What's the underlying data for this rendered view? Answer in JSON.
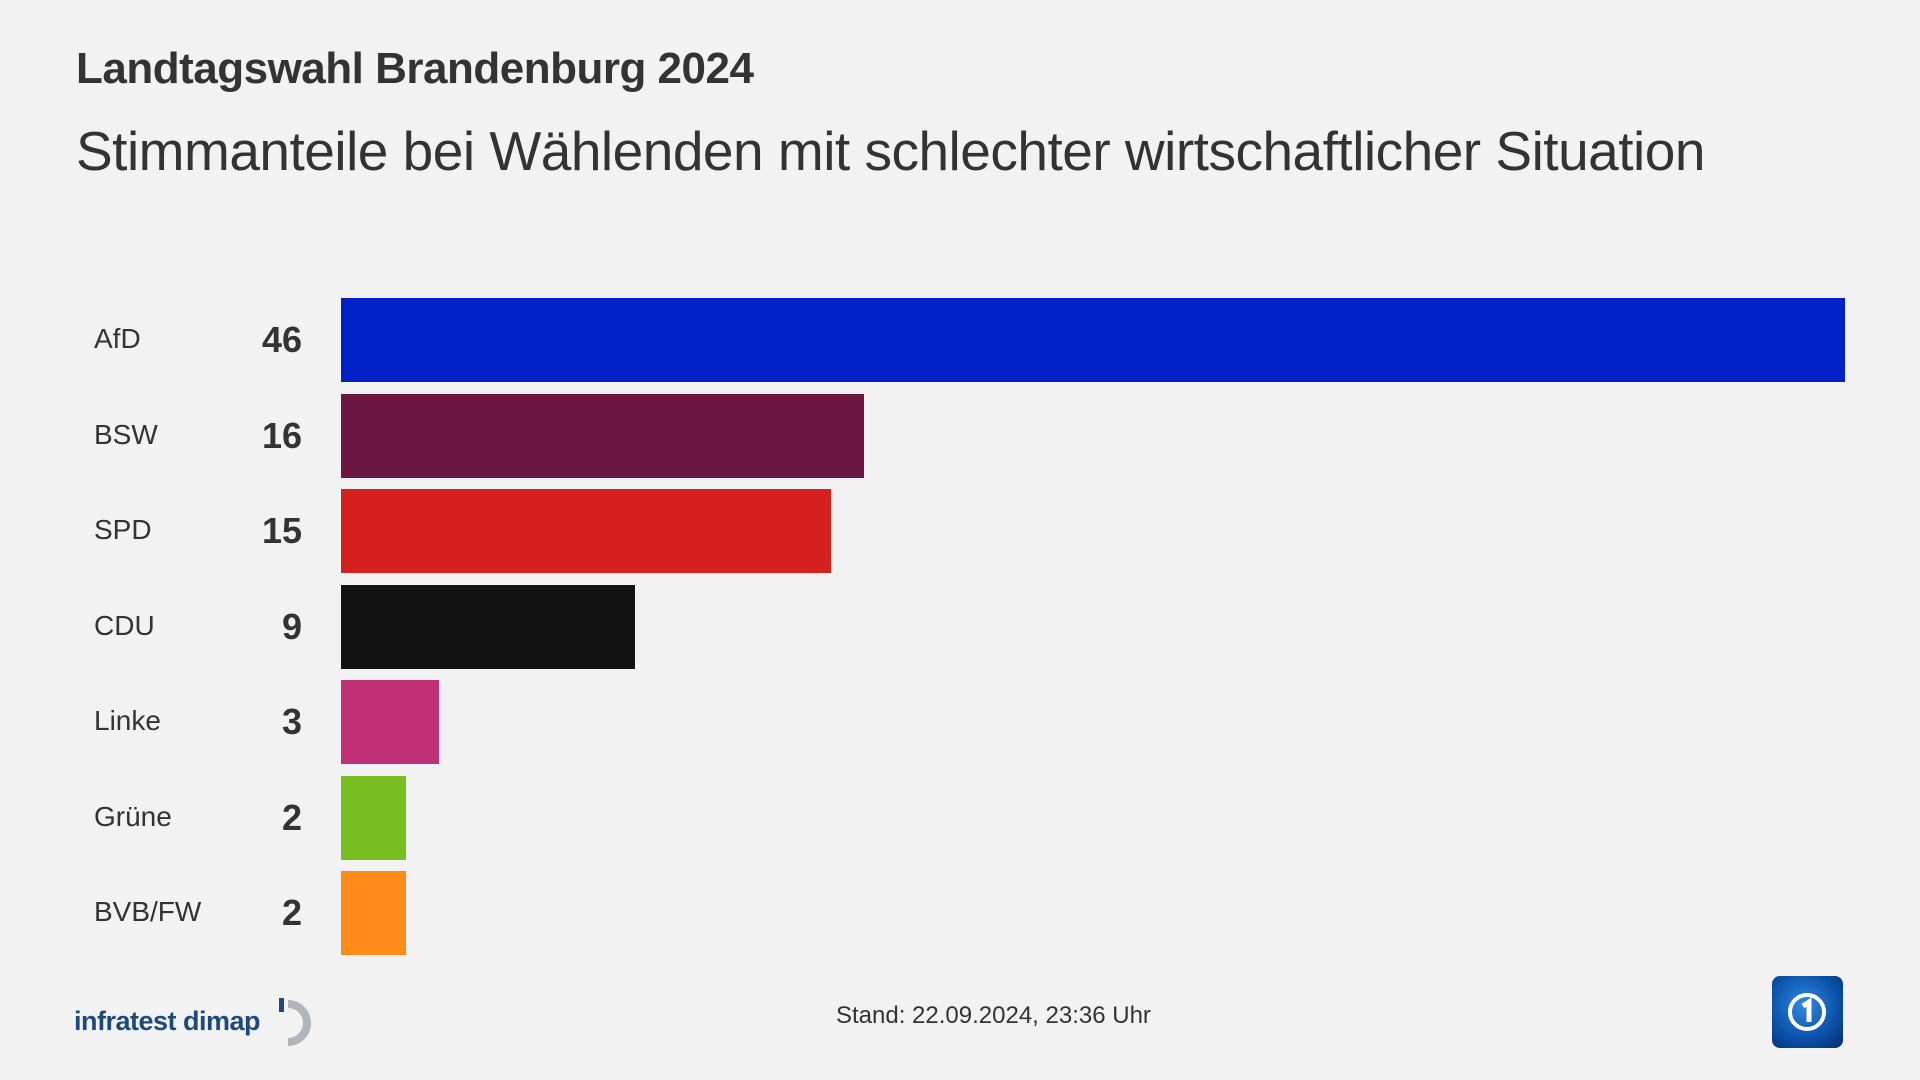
{
  "header": {
    "title": "Landtagswahl Brandenburg 2024",
    "subtitle": "Stimmanteile bei Wählenden mit schlechter wirtschaftlicher Situation"
  },
  "chart_data": {
    "type": "bar",
    "orientation": "horizontal",
    "categories": [
      "AfD",
      "BSW",
      "SPD",
      "CDU",
      "Linke",
      "Grüne",
      "BVB/FW"
    ],
    "values": [
      46,
      16,
      15,
      9,
      3,
      2,
      2
    ],
    "value_labels": [
      "46",
      "16",
      "15",
      "9",
      "3",
      "2",
      "2"
    ],
    "colors": [
      "#0021c8",
      "#6b1942",
      "#d61f1f",
      "#121212",
      "#bf3075",
      "#78be20",
      "#ff8c1a"
    ],
    "title": "Landtagswahl Brandenburg 2024",
    "subtitle": "Stimmanteile bei Wählenden mit schlechter wirtschaftlicher Situation",
    "xlim": [
      0,
      46
    ],
    "grid": false
  },
  "footer": {
    "stand": "Stand:  22.09.2024, 23:36 Uhr",
    "source_logo": "infratest dimap",
    "broadcaster_logo": "ARD Das Erste"
  }
}
